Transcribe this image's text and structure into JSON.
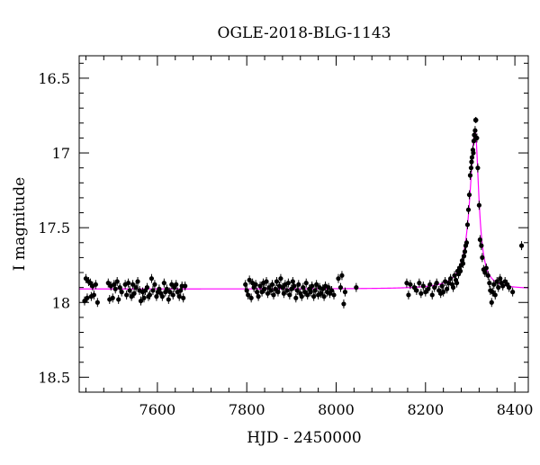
{
  "chart_data": {
    "type": "scatter",
    "title": "OGLE-2018-BLG-1143",
    "xlabel": "HJD - 2450000",
    "ylabel": "I magnitude",
    "xlim": [
      7425,
      8430
    ],
    "ylim": [
      18.6,
      16.35
    ],
    "y_inverted": true,
    "grid": false,
    "legend": "none",
    "x_ticks_major": [
      7600,
      7800,
      8000,
      8200,
      8400
    ],
    "x_ticks_minor_step": 40,
    "y_ticks_major": [
      16.5,
      17,
      17.5,
      18,
      18.5
    ],
    "y_ticks_minor_step": 0.1,
    "colors": {
      "points": "#000000",
      "model": "#ff00ff",
      "axes": "#000000"
    },
    "series": [
      {
        "kind": "observations",
        "points": [
          [
            7437,
            17.99,
            0.03
          ],
          [
            7440,
            17.84,
            0.03
          ],
          [
            7443,
            17.97,
            0.03
          ],
          [
            7446,
            17.86,
            0.03
          ],
          [
            7450,
            17.87,
            0.03
          ],
          [
            7452,
            17.96,
            0.03
          ],
          [
            7455,
            17.89,
            0.03
          ],
          [
            7458,
            17.95,
            0.03
          ],
          [
            7462,
            17.88,
            0.03
          ],
          [
            7466,
            18.0,
            0.03
          ],
          [
            7490,
            17.87,
            0.03
          ],
          [
            7493,
            17.98,
            0.03
          ],
          [
            7496,
            17.89,
            0.03
          ],
          [
            7500,
            17.97,
            0.03
          ],
          [
            7503,
            17.88,
            0.03
          ],
          [
            7506,
            17.91,
            0.03
          ],
          [
            7510,
            17.86,
            0.03
          ],
          [
            7513,
            17.98,
            0.03
          ],
          [
            7516,
            17.9,
            0.03
          ],
          [
            7520,
            17.93,
            0.03
          ],
          [
            7528,
            17.88,
            0.03
          ],
          [
            7531,
            17.95,
            0.03
          ],
          [
            7535,
            17.87,
            0.03
          ],
          [
            7538,
            17.92,
            0.03
          ],
          [
            7542,
            17.96,
            0.03
          ],
          [
            7545,
            17.88,
            0.03
          ],
          [
            7548,
            17.94,
            0.03
          ],
          [
            7552,
            17.9,
            0.03
          ],
          [
            7556,
            17.86,
            0.03
          ],
          [
            7560,
            17.92,
            0.03
          ],
          [
            7563,
            17.99,
            0.03
          ],
          [
            7567,
            17.93,
            0.03
          ],
          [
            7570,
            17.97,
            0.03
          ],
          [
            7573,
            17.92,
            0.03
          ],
          [
            7577,
            17.9,
            0.03
          ],
          [
            7580,
            17.96,
            0.03
          ],
          [
            7583,
            17.95,
            0.03
          ],
          [
            7587,
            17.84,
            0.03
          ],
          [
            7590,
            17.92,
            0.03
          ],
          [
            7594,
            17.88,
            0.03
          ],
          [
            7598,
            17.96,
            0.03
          ],
          [
            7601,
            17.93,
            0.03
          ],
          [
            7604,
            17.91,
            0.03
          ],
          [
            7608,
            17.94,
            0.03
          ],
          [
            7611,
            17.96,
            0.03
          ],
          [
            7615,
            17.87,
            0.03
          ],
          [
            7618,
            17.93,
            0.03
          ],
          [
            7621,
            17.91,
            0.03
          ],
          [
            7625,
            17.98,
            0.03
          ],
          [
            7628,
            17.93,
            0.03
          ],
          [
            7632,
            17.88,
            0.03
          ],
          [
            7635,
            17.95,
            0.03
          ],
          [
            7638,
            17.9,
            0.03
          ],
          [
            7642,
            17.88,
            0.03
          ],
          [
            7645,
            17.93,
            0.03
          ],
          [
            7649,
            17.96,
            0.03
          ],
          [
            7652,
            17.92,
            0.03
          ],
          [
            7655,
            17.89,
            0.03
          ],
          [
            7658,
            17.97,
            0.03
          ],
          [
            7662,
            17.89,
            0.03
          ],
          [
            7797,
            17.88,
            0.03
          ],
          [
            7800,
            17.92,
            0.03
          ],
          [
            7803,
            17.95,
            0.03
          ],
          [
            7806,
            17.85,
            0.03
          ],
          [
            7810,
            17.97,
            0.03
          ],
          [
            7813,
            17.87,
            0.03
          ],
          [
            7816,
            17.9,
            0.03
          ],
          [
            7820,
            17.88,
            0.03
          ],
          [
            7823,
            17.93,
            0.03
          ],
          [
            7826,
            17.96,
            0.03
          ],
          [
            7830,
            17.89,
            0.03
          ],
          [
            7834,
            17.93,
            0.03
          ],
          [
            7837,
            17.87,
            0.03
          ],
          [
            7840,
            17.91,
            0.03
          ],
          [
            7844,
            17.86,
            0.03
          ],
          [
            7847,
            17.94,
            0.03
          ],
          [
            7850,
            17.9,
            0.03
          ],
          [
            7854,
            17.92,
            0.03
          ],
          [
            7857,
            17.88,
            0.03
          ],
          [
            7860,
            17.95,
            0.03
          ],
          [
            7864,
            17.91,
            0.03
          ],
          [
            7867,
            17.86,
            0.03
          ],
          [
            7870,
            17.93,
            0.03
          ],
          [
            7873,
            17.89,
            0.03
          ],
          [
            7876,
            17.84,
            0.03
          ],
          [
            7880,
            17.9,
            0.03
          ],
          [
            7883,
            17.94,
            0.03
          ],
          [
            7886,
            17.88,
            0.03
          ],
          [
            7890,
            17.92,
            0.03
          ],
          [
            7893,
            17.87,
            0.03
          ],
          [
            7896,
            17.95,
            0.03
          ],
          [
            7900,
            17.91,
            0.03
          ],
          [
            7903,
            17.86,
            0.03
          ],
          [
            7906,
            17.89,
            0.03
          ],
          [
            7910,
            17.97,
            0.03
          ],
          [
            7913,
            17.92,
            0.03
          ],
          [
            7916,
            17.88,
            0.03
          ],
          [
            7920,
            17.94,
            0.03
          ],
          [
            7923,
            17.96,
            0.03
          ],
          [
            7926,
            17.9,
            0.03
          ],
          [
            7930,
            17.93,
            0.03
          ],
          [
            7933,
            17.87,
            0.03
          ],
          [
            7936,
            17.95,
            0.03
          ],
          [
            7940,
            17.91,
            0.03
          ],
          [
            7943,
            17.93,
            0.03
          ],
          [
            7946,
            17.89,
            0.03
          ],
          [
            7950,
            17.96,
            0.03
          ],
          [
            7953,
            17.92,
            0.03
          ],
          [
            7956,
            17.88,
            0.03
          ],
          [
            7960,
            17.95,
            0.03
          ],
          [
            7963,
            17.9,
            0.03
          ],
          [
            7966,
            17.94,
            0.03
          ],
          [
            7970,
            17.91,
            0.03
          ],
          [
            7973,
            17.96,
            0.03
          ],
          [
            7976,
            17.89,
            0.03
          ],
          [
            7980,
            17.93,
            0.03
          ],
          [
            7983,
            17.9,
            0.03
          ],
          [
            7986,
            17.94,
            0.03
          ],
          [
            7990,
            17.92,
            0.03
          ],
          [
            7995,
            17.95,
            0.03
          ],
          [
            8005,
            17.84,
            0.03
          ],
          [
            8010,
            17.9,
            0.03
          ],
          [
            8013,
            17.82,
            0.03
          ],
          [
            8017,
            18.01,
            0.03
          ],
          [
            8020,
            17.93,
            0.03
          ],
          [
            8045,
            17.9,
            0.03
          ],
          [
            8158,
            17.87,
            0.03
          ],
          [
            8162,
            17.95,
            0.03
          ],
          [
            8166,
            17.88,
            0.03
          ],
          [
            8175,
            17.9,
            0.03
          ],
          [
            8180,
            17.92,
            0.03
          ],
          [
            8186,
            17.87,
            0.03
          ],
          [
            8190,
            17.94,
            0.03
          ],
          [
            8195,
            17.89,
            0.03
          ],
          [
            8200,
            17.93,
            0.03
          ],
          [
            8206,
            17.91,
            0.03
          ],
          [
            8210,
            17.88,
            0.03
          ],
          [
            8215,
            17.95,
            0.03
          ],
          [
            8220,
            17.9,
            0.03
          ],
          [
            8225,
            17.87,
            0.03
          ],
          [
            8230,
            17.92,
            0.03
          ],
          [
            8234,
            17.94,
            0.03
          ],
          [
            8237,
            17.89,
            0.03
          ],
          [
            8240,
            17.93,
            0.03
          ],
          [
            8244,
            17.86,
            0.03
          ],
          [
            8248,
            17.91,
            0.03
          ],
          [
            8252,
            17.87,
            0.03
          ],
          [
            8256,
            17.84,
            0.03
          ],
          [
            8260,
            17.88,
            0.03
          ],
          [
            8262,
            17.9,
            0.03
          ],
          [
            8265,
            17.82,
            0.03
          ],
          [
            8268,
            17.85,
            0.03
          ],
          [
            8270,
            17.87,
            0.03
          ],
          [
            8272,
            17.79,
            0.03
          ],
          [
            8274,
            17.81,
            0.03
          ],
          [
            8276,
            17.77,
            0.03
          ],
          [
            8278,
            17.79,
            0.03
          ],
          [
            8280,
            17.75,
            0.03
          ],
          [
            8282,
            17.72,
            0.03
          ],
          [
            8284,
            17.74,
            0.03
          ],
          [
            8286,
            17.69,
            0.03
          ],
          [
            8288,
            17.66,
            0.03
          ],
          [
            8290,
            17.62,
            0.03
          ],
          [
            8292,
            17.6,
            0.03
          ],
          [
            8294,
            17.48,
            0.03
          ],
          [
            8296,
            17.38,
            0.03
          ],
          [
            8298,
            17.28,
            0.03
          ],
          [
            8300,
            17.15,
            0.03
          ],
          [
            8302,
            17.1,
            0.03
          ],
          [
            8303,
            17.06,
            0.03
          ],
          [
            8304,
            17.03,
            0.03
          ],
          [
            8306,
            16.98,
            0.03
          ],
          [
            8307,
            17.0,
            0.03
          ],
          [
            8308,
            16.92,
            0.03
          ],
          [
            8309,
            16.88,
            0.03
          ],
          [
            8311,
            16.85,
            0.03
          ],
          [
            8312,
            16.78,
            0.02
          ],
          [
            8313,
            16.78,
            0.02
          ],
          [
            8315,
            16.9,
            0.03
          ],
          [
            8317,
            17.1,
            0.03
          ],
          [
            8320,
            17.35,
            0.03
          ],
          [
            8322,
            17.58,
            0.03
          ],
          [
            8325,
            17.62,
            0.03
          ],
          [
            8327,
            17.7,
            0.03
          ],
          [
            8330,
            17.78,
            0.03
          ],
          [
            8333,
            17.8,
            0.03
          ],
          [
            8336,
            17.77,
            0.03
          ],
          [
            8340,
            17.82,
            0.03
          ],
          [
            8343,
            17.87,
            0.03
          ],
          [
            8345,
            17.92,
            0.03
          ],
          [
            8348,
            18.0,
            0.03
          ],
          [
            8350,
            17.93,
            0.03
          ],
          [
            8353,
            17.88,
            0.03
          ],
          [
            8356,
            17.95,
            0.03
          ],
          [
            8360,
            17.86,
            0.03
          ],
          [
            8363,
            17.9,
            0.03
          ],
          [
            8367,
            17.84,
            0.03
          ],
          [
            8370,
            17.87,
            0.03
          ],
          [
            8373,
            17.89,
            0.03
          ],
          [
            8378,
            17.86,
            0.03
          ],
          [
            8383,
            17.88,
            0.03
          ],
          [
            8387,
            17.9,
            0.03
          ],
          [
            8395,
            17.93,
            0.03
          ],
          [
            8415,
            17.62,
            0.03
          ]
        ]
      },
      {
        "kind": "model",
        "baseline": 17.91,
        "t0": 8311,
        "peak": 16.85,
        "rise_width": 14,
        "fall_width": 10
      }
    ]
  }
}
